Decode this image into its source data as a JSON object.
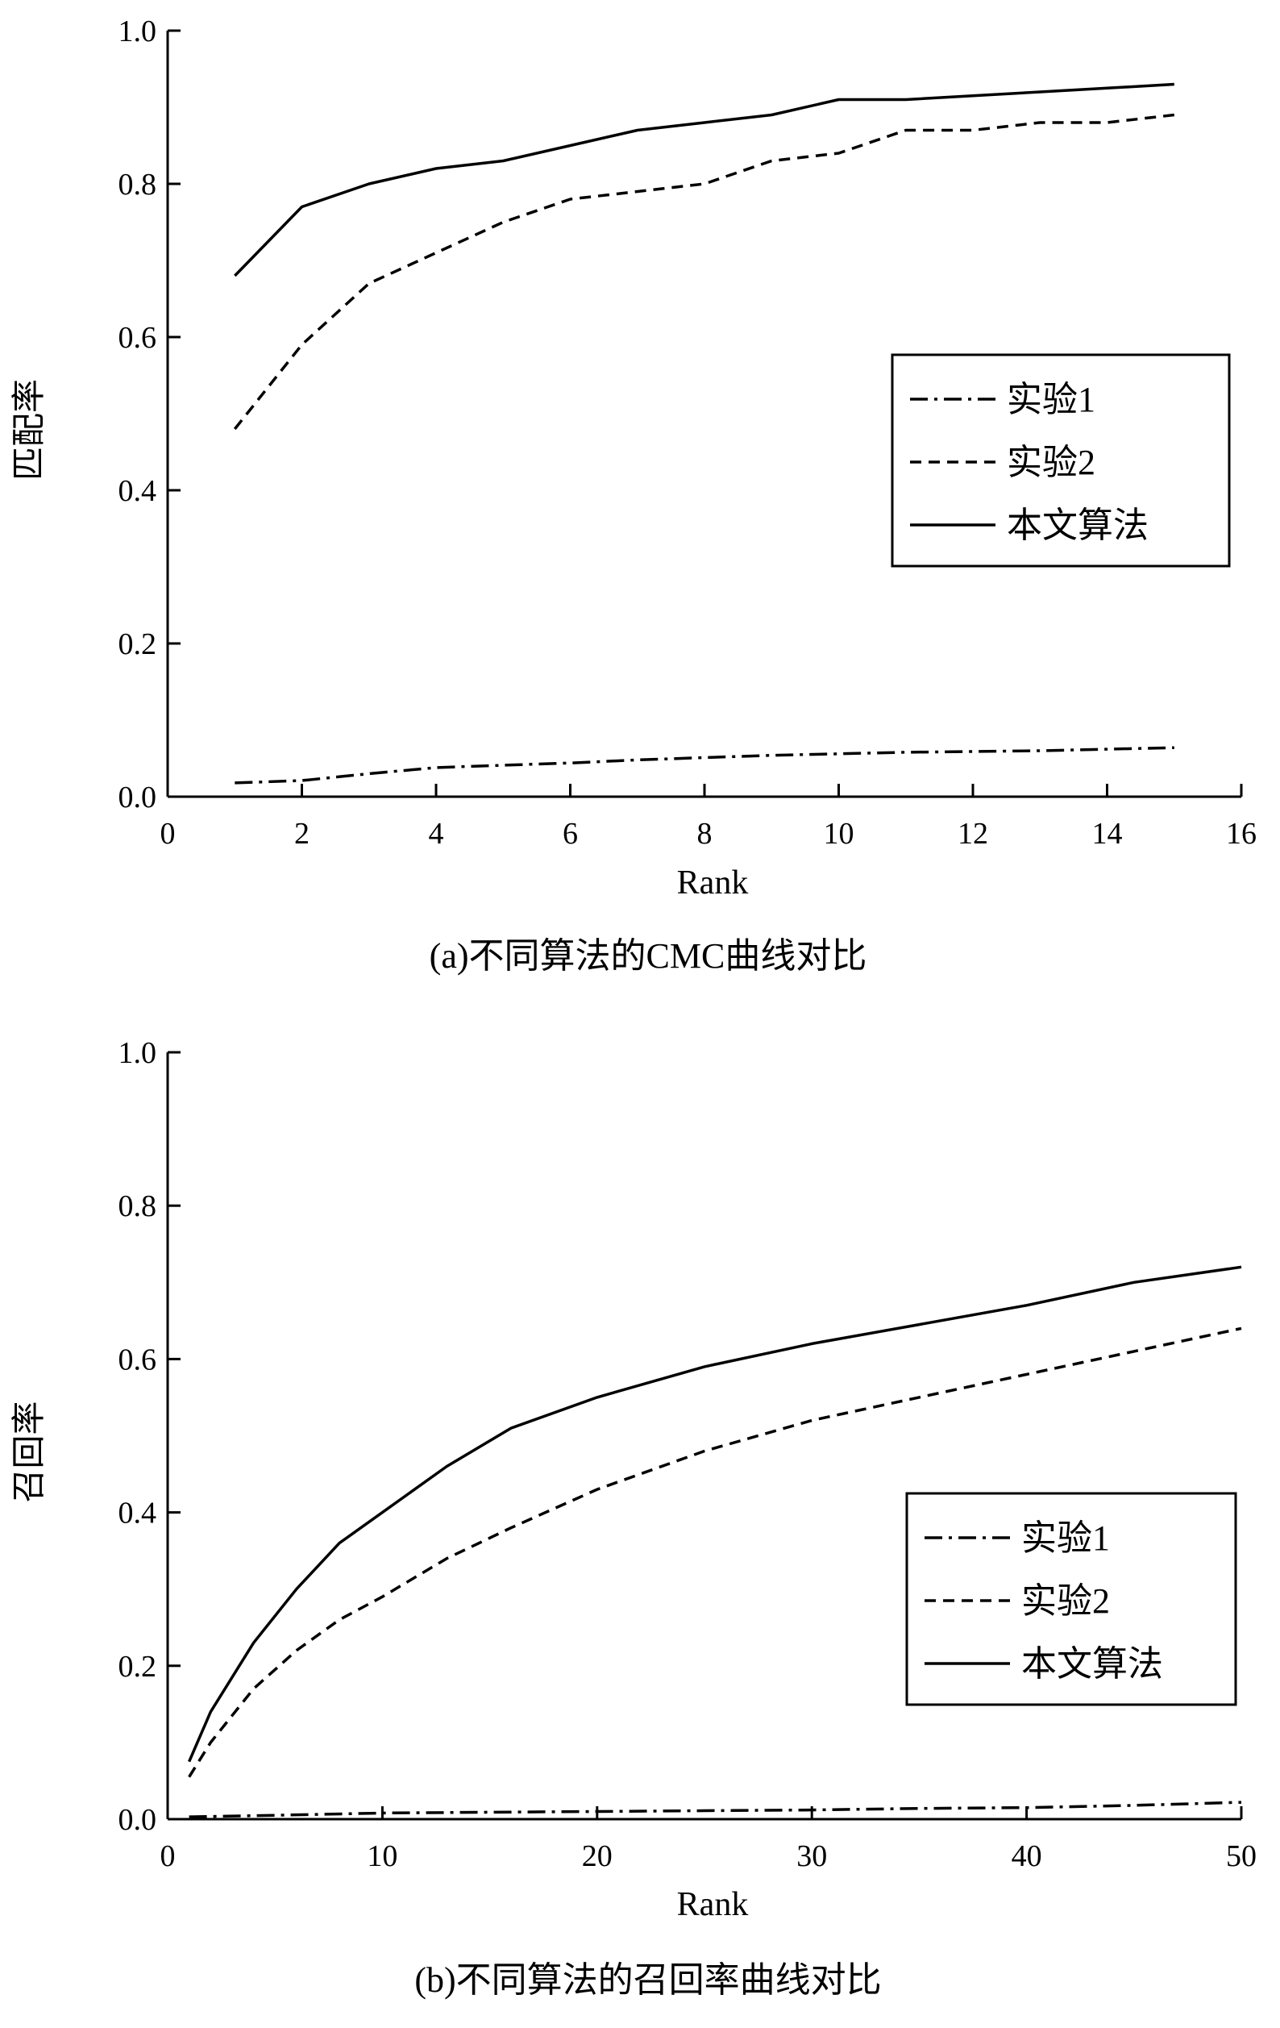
{
  "chart_data": [
    {
      "type": "line",
      "caption": "(a)不同算法的CMC曲线对比",
      "xlabel": "Rank",
      "ylabel": "匹配率",
      "xlim": [
        0,
        16
      ],
      "ylim": [
        0,
        1.0
      ],
      "xticks": [
        "0",
        "2",
        "4",
        "6",
        "8",
        "10",
        "12",
        "14",
        "16"
      ],
      "yticks": [
        "0.0",
        "0.2",
        "0.4",
        "0.6",
        "0.8",
        "1.0"
      ],
      "legend_position": "center-right",
      "series": [
        {
          "name": "实验1",
          "style": "dashdot",
          "x": [
            1,
            2,
            3,
            4,
            5,
            6,
            7,
            8,
            9,
            10,
            11,
            12,
            13,
            14,
            15
          ],
          "y": [
            0.018,
            0.021,
            0.03,
            0.038,
            0.041,
            0.044,
            0.048,
            0.051,
            0.054,
            0.056,
            0.058,
            0.059,
            0.06,
            0.062,
            0.064
          ]
        },
        {
          "name": "实验2",
          "style": "dashed",
          "x": [
            1,
            2,
            3,
            4,
            5,
            6,
            7,
            8,
            9,
            10,
            11,
            12,
            13,
            14,
            15
          ],
          "y": [
            0.48,
            0.59,
            0.67,
            0.71,
            0.75,
            0.78,
            0.79,
            0.8,
            0.83,
            0.84,
            0.87,
            0.87,
            0.88,
            0.88,
            0.89
          ]
        },
        {
          "name": "本文算法",
          "style": "solid",
          "x": [
            1,
            2,
            3,
            4,
            5,
            6,
            7,
            8,
            9,
            10,
            11,
            12,
            13,
            14,
            15
          ],
          "y": [
            0.68,
            0.77,
            0.8,
            0.82,
            0.83,
            0.85,
            0.87,
            0.88,
            0.89,
            0.91,
            0.91,
            0.915,
            0.92,
            0.925,
            0.93
          ]
        }
      ]
    },
    {
      "type": "line",
      "caption": "(b)不同算法的召回率曲线对比",
      "xlabel": "Rank",
      "ylabel": "召回率",
      "xlim": [
        0,
        50
      ],
      "ylim": [
        0,
        1.0
      ],
      "xticks": [
        "0",
        "10",
        "20",
        "30",
        "40",
        "50"
      ],
      "yticks": [
        "0.0",
        "0.2",
        "0.4",
        "0.6",
        "0.8",
        "1.0"
      ],
      "legend_position": "lower-right",
      "series": [
        {
          "name": "实验1",
          "style": "dashdot",
          "x": [
            1,
            5,
            10,
            15,
            20,
            25,
            30,
            35,
            40,
            45,
            50
          ],
          "y": [
            0.003,
            0.005,
            0.008,
            0.009,
            0.01,
            0.011,
            0.012,
            0.014,
            0.015,
            0.018,
            0.022
          ]
        },
        {
          "name": "实验2",
          "style": "dashed",
          "x": [
            1,
            2,
            4,
            6,
            8,
            10,
            13,
            16,
            20,
            25,
            30,
            35,
            40,
            45,
            50
          ],
          "y": [
            0.055,
            0.1,
            0.17,
            0.22,
            0.26,
            0.29,
            0.34,
            0.38,
            0.43,
            0.48,
            0.52,
            0.55,
            0.58,
            0.61,
            0.64
          ]
        },
        {
          "name": "本文算法",
          "style": "solid",
          "x": [
            1,
            2,
            4,
            6,
            8,
            10,
            13,
            16,
            20,
            25,
            30,
            35,
            40,
            45,
            50
          ],
          "y": [
            0.075,
            0.14,
            0.23,
            0.3,
            0.36,
            0.4,
            0.46,
            0.51,
            0.55,
            0.59,
            0.62,
            0.645,
            0.67,
            0.7,
            0.72
          ]
        }
      ]
    }
  ]
}
